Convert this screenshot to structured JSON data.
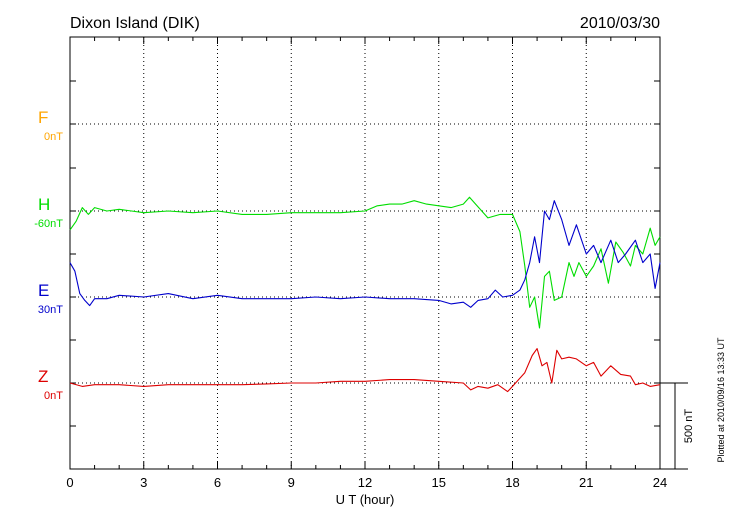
{
  "chart_data": {
    "type": "line",
    "title": "Dixon Island (DIK)",
    "date": "2010/03/30",
    "xlabel": "U T (hour)",
    "xlim": [
      0,
      24
    ],
    "xticks": [
      "0",
      "3",
      "6",
      "9",
      "12",
      "15",
      "18",
      "21",
      "24"
    ],
    "grid": true,
    "scale_bar": "500 nT",
    "plotted_note": "Plotted at 2010/09/16 13:33 UT",
    "colors": {
      "F": "#ffa500",
      "H": "#00dd00",
      "E": "#0000cc",
      "Z": "#dd0000",
      "axis": "#000000"
    },
    "series": [
      {
        "name": "F",
        "baseline": "0nT",
        "x": [],
        "values": []
      },
      {
        "name": "H",
        "baseline": "-60nT",
        "x": [
          0,
          0.25,
          0.5,
          0.75,
          1,
          1.5,
          2,
          2.5,
          3,
          4,
          5,
          6,
          7,
          8,
          9,
          10,
          11,
          12,
          12.5,
          13,
          13.5,
          14,
          14.5,
          15,
          15.5,
          16,
          16.25,
          16.5,
          17,
          17.5,
          18,
          18.3,
          18.5,
          18.7,
          18.9,
          19.1,
          19.3,
          19.5,
          19.7,
          20,
          20.3,
          20.5,
          20.7,
          21,
          21.3,
          21.6,
          21.9,
          22.2,
          22.5,
          22.8,
          23,
          23.3,
          23.6,
          23.8,
          24
        ],
        "values": [
          -110,
          -60,
          20,
          -20,
          20,
          0,
          10,
          0,
          -10,
          0,
          -10,
          0,
          -20,
          -20,
          -10,
          -10,
          -10,
          0,
          30,
          40,
          40,
          60,
          40,
          30,
          20,
          40,
          80,
          40,
          -40,
          -20,
          -20,
          -120,
          -320,
          -560,
          -500,
          -680,
          -380,
          -350,
          -520,
          -500,
          -300,
          -380,
          -300,
          -380,
          -320,
          -220,
          -420,
          -180,
          -240,
          -320,
          -200,
          -250,
          -100,
          -200,
          -150
        ]
      },
      {
        "name": "E",
        "baseline": "30nT",
        "x": [
          0,
          0.2,
          0.4,
          0.6,
          0.8,
          1,
          1.5,
          2,
          3,
          4,
          5,
          6,
          7,
          8,
          9,
          10,
          11,
          12,
          13,
          14,
          15,
          15.5,
          16,
          16.3,
          16.6,
          17,
          17.3,
          17.6,
          18,
          18.3,
          18.5,
          18.7,
          18.9,
          19.1,
          19.3,
          19.5,
          19.7,
          20,
          20.3,
          20.6,
          21,
          21.3,
          21.6,
          22,
          22.3,
          22.6,
          23,
          23.3,
          23.6,
          23.8,
          24
        ],
        "values": [
          200,
          150,
          20,
          -20,
          -50,
          -10,
          -10,
          10,
          0,
          20,
          -10,
          10,
          -10,
          -10,
          -10,
          0,
          -10,
          0,
          -10,
          -10,
          -20,
          -40,
          -30,
          -60,
          -20,
          -10,
          40,
          0,
          10,
          40,
          100,
          200,
          350,
          200,
          500,
          450,
          560,
          450,
          300,
          420,
          250,
          300,
          200,
          330,
          200,
          250,
          330,
          200,
          250,
          50,
          200
        ]
      },
      {
        "name": "Z",
        "baseline": "0nT",
        "x": [
          0,
          0.5,
          1,
          2,
          3,
          4,
          5,
          6,
          7,
          8,
          9,
          10,
          11,
          12,
          13,
          14,
          15,
          16,
          16.3,
          16.6,
          17,
          17.4,
          17.8,
          18,
          18.5,
          18.8,
          19,
          19.2,
          19.4,
          19.6,
          19.8,
          20,
          20.3,
          20.6,
          21,
          21.3,
          21.6,
          22,
          22.4,
          22.8,
          23,
          23.3,
          23.6,
          24
        ],
        "values": [
          0,
          -20,
          -10,
          -10,
          -20,
          -10,
          -10,
          -10,
          -10,
          -5,
          0,
          0,
          10,
          10,
          20,
          20,
          10,
          0,
          -40,
          -20,
          -30,
          -10,
          -50,
          -20,
          60,
          160,
          200,
          100,
          120,
          0,
          190,
          140,
          150,
          140,
          100,
          120,
          40,
          100,
          50,
          40,
          -10,
          0,
          -20,
          -10
        ]
      }
    ]
  }
}
